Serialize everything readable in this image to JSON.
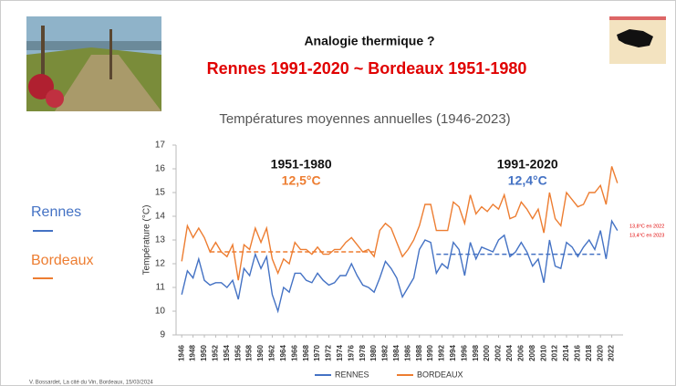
{
  "chart_data": {
    "type": "line",
    "header": "Analogie thermique ?",
    "subheader": "Rennes 1991-2020 ~ Bordeaux 1951-1980",
    "title": "Températures moyennes annuelles (1946-2023)",
    "y_label": "Température (°C)",
    "side_labels": [
      "Rennes",
      "Bordeaux"
    ],
    "credit": "V. Bossardet, La cité du Vin, Bordeaux, 15/03/2024",
    "x": [
      1946,
      1947,
      1948,
      1949,
      1950,
      1951,
      1952,
      1953,
      1954,
      1955,
      1956,
      1957,
      1958,
      1959,
      1960,
      1961,
      1962,
      1963,
      1964,
      1965,
      1966,
      1967,
      1968,
      1969,
      1970,
      1971,
      1972,
      1973,
      1974,
      1975,
      1976,
      1977,
      1978,
      1979,
      1980,
      1981,
      1982,
      1983,
      1984,
      1985,
      1986,
      1987,
      1988,
      1989,
      1990,
      1991,
      1992,
      1993,
      1994,
      1995,
      1996,
      1997,
      1998,
      1999,
      2000,
      2001,
      2002,
      2003,
      2004,
      2005,
      2006,
      2007,
      2008,
      2009,
      2010,
      2011,
      2012,
      2013,
      2014,
      2015,
      2016,
      2017,
      2018,
      2019,
      2020,
      2021,
      2022,
      2023
    ],
    "series": [
      {
        "name": "RENNES",
        "color": "#4472c4",
        "values": [
          10.7,
          11.7,
          11.4,
          12.2,
          11.3,
          11.1,
          11.2,
          11.2,
          11.0,
          11.3,
          10.5,
          11.8,
          11.5,
          12.4,
          11.8,
          12.3,
          10.7,
          10.0,
          11.0,
          10.8,
          11.6,
          11.6,
          11.3,
          11.2,
          11.6,
          11.3,
          11.1,
          11.2,
          11.5,
          11.5,
          12.0,
          11.5,
          11.1,
          11.0,
          10.8,
          11.4,
          12.1,
          11.8,
          11.4,
          10.6,
          11.0,
          11.4,
          12.6,
          13.0,
          12.9,
          11.6,
          12.0,
          11.8,
          12.9,
          12.6,
          11.5,
          12.9,
          12.2,
          12.7,
          12.6,
          12.5,
          13.0,
          13.2,
          12.3,
          12.5,
          12.9,
          12.5,
          11.9,
          12.2,
          11.2,
          13.0,
          11.9,
          11.8,
          12.9,
          12.7,
          12.3,
          12.7,
          13.0,
          12.6,
          13.4,
          12.2,
          13.8,
          13.4
        ]
      },
      {
        "name": "BORDEAUX",
        "color": "#ed7d31",
        "values": [
          12.1,
          13.6,
          13.1,
          13.5,
          13.1,
          12.5,
          12.9,
          12.5,
          12.3,
          12.8,
          11.3,
          12.8,
          12.6,
          13.5,
          12.9,
          13.5,
          12.2,
          11.6,
          12.2,
          12.0,
          12.9,
          12.6,
          12.6,
          12.4,
          12.7,
          12.4,
          12.4,
          12.6,
          12.6,
          12.9,
          13.1,
          12.8,
          12.5,
          12.6,
          12.3,
          13.4,
          13.7,
          13.5,
          12.9,
          12.3,
          12.6,
          13.0,
          13.6,
          14.5,
          14.5,
          13.4,
          13.4,
          13.4,
          14.6,
          14.4,
          13.7,
          14.9,
          14.1,
          14.4,
          14.2,
          14.5,
          14.3,
          14.9,
          13.9,
          14.0,
          14.6,
          14.3,
          13.9,
          14.3,
          13.3,
          15.0,
          13.9,
          13.6,
          15.0,
          14.7,
          14.4,
          14.5,
          15.0,
          15.0,
          15.3,
          14.5,
          16.1,
          15.4
        ]
      }
    ],
    "reference_lines": [
      {
        "period": "1951-1980",
        "label": "12,5°C",
        "value": 12.5,
        "x": [
          1951,
          1980
        ],
        "color": "#ed7d31"
      },
      {
        "period": "1991-2020",
        "label": "12,4°C",
        "value": 12.4,
        "x": [
          1991,
          2020
        ],
        "color": "#4472c4"
      }
    ],
    "end_notes": [
      "13,8°C en 2022",
      "13,4°C en 2023"
    ],
    "xlim": [
      1945,
      2024
    ],
    "xticks": [
      1946,
      1948,
      1950,
      1952,
      1954,
      1956,
      1958,
      1960,
      1962,
      1964,
      1966,
      1968,
      1970,
      1972,
      1974,
      1976,
      1978,
      1980,
      1982,
      1984,
      1986,
      1988,
      1990,
      1992,
      1994,
      1996,
      1998,
      2000,
      2002,
      2004,
      2006,
      2008,
      2010,
      2012,
      2014,
      2016,
      2018,
      2020,
      2022
    ],
    "ylim": [
      9,
      17
    ],
    "yticks": [
      9,
      10,
      11,
      12,
      13,
      14,
      15,
      16,
      17
    ]
  }
}
